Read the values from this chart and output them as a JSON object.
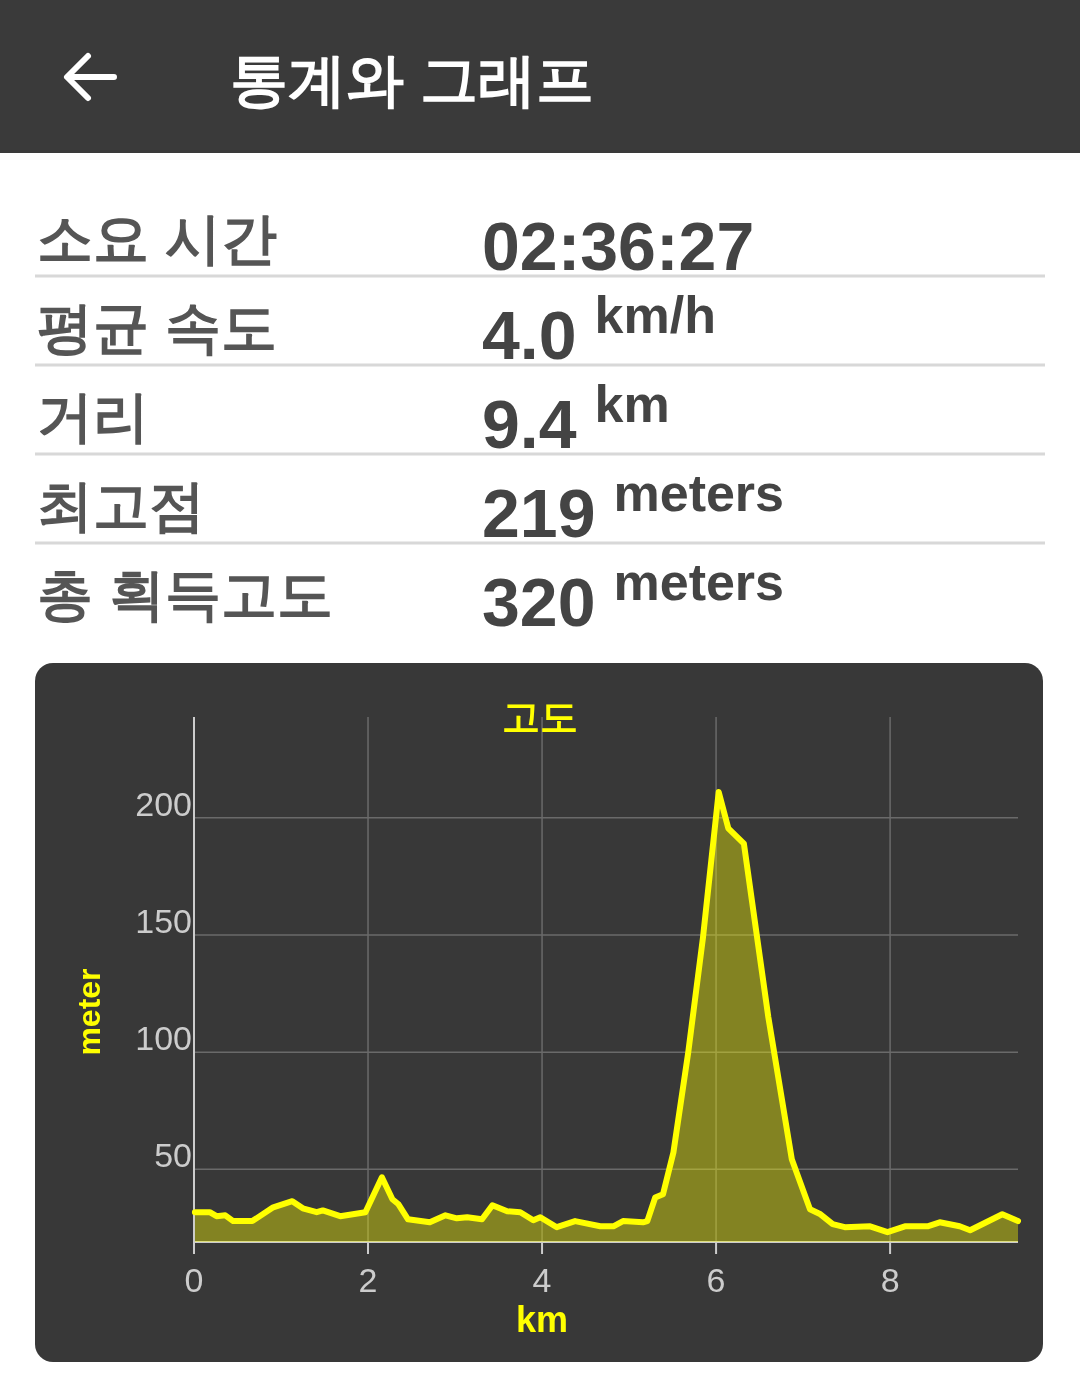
{
  "chart_data": [
    {
      "type": "other",
      "title": "통계와 그래프",
      "annotations": [
        "소요 시간",
        "02:36:27",
        "평균 속도",
        "4.0 km/h",
        "거리",
        "9.4 km",
        "최고점",
        "219 meters",
        "총 획득고도",
        "320 meters"
      ]
    },
    {
      "type": "area",
      "title": "고도",
      "xlabel": "km",
      "ylabel": "meter",
      "xlim": [
        0,
        9.47
      ],
      "xticks": [
        0,
        2,
        4,
        6,
        8
      ],
      "ylim": [
        19,
        243
      ],
      "yticks": [
        50,
        100,
        150,
        200
      ],
      "grid": true,
      "series": [
        {
          "color": "#ffff00",
          "x": [
            0.01,
            0.18,
            0.26,
            0.36,
            0.45,
            0.67,
            0.91,
            1.13,
            1.25,
            1.41,
            1.48,
            1.68,
            1.97,
            2.16,
            2.28,
            2.35,
            2.46,
            2.71,
            2.89,
            3.02,
            3.14,
            3.31,
            3.43,
            3.6,
            3.75,
            3.9,
            3.98,
            4.17,
            4.38,
            4.67,
            4.82,
            4.93,
            5.16,
            5.21,
            5.3,
            5.39,
            5.51,
            5.68,
            5.85,
            6.03,
            6.14,
            6.32,
            6.6,
            6.87,
            7.08,
            7.2,
            7.34,
            7.48,
            7.77,
            7.97,
            8.17,
            8.43,
            8.57,
            8.8,
            8.92,
            9.29,
            9.47
          ],
          "values": [
            31.7,
            31.7,
            30,
            30.4,
            27.9,
            27.9,
            33.8,
            36.4,
            33.4,
            31.7,
            32.5,
            30,
            31.7,
            46.6,
            37.2,
            35.1,
            28.7,
            27.4,
            30.4,
            29.1,
            29.6,
            28.7,
            34.7,
            32.1,
            31.7,
            28.3,
            29.6,
            25.3,
            27.9,
            25.7,
            25.7,
            27.9,
            27.4,
            27.9,
            38,
            39.4,
            57.2,
            99.8,
            149,
            211,
            195.5,
            189,
            115,
            54.3,
            33,
            30.8,
            26.6,
            25.3,
            25.7,
            23.2,
            25.7,
            25.7,
            27.4,
            25.7,
            24,
            30.8,
            27.9
          ]
        }
      ]
    }
  ]
}
